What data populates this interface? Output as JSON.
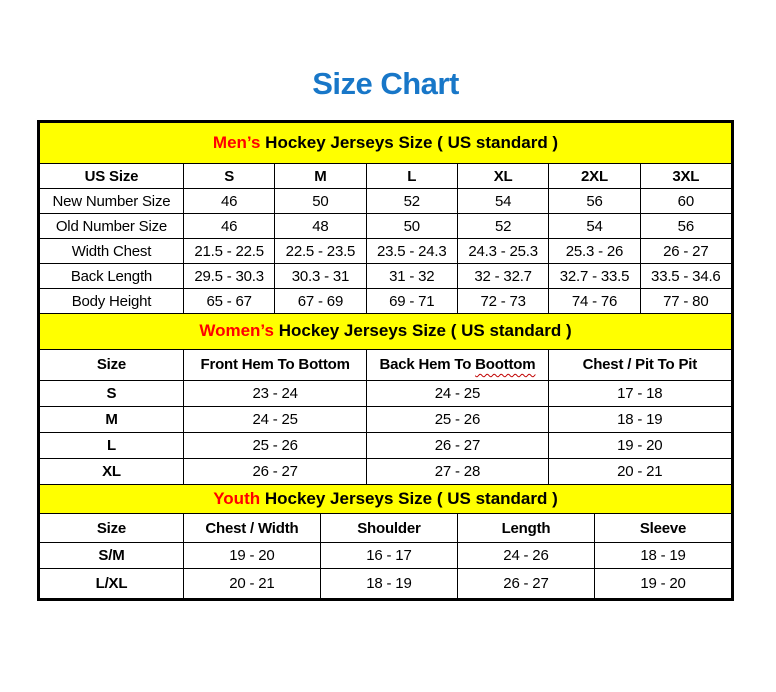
{
  "page": {
    "title": "Size Chart"
  },
  "colors": {
    "title_blue": "#1877c8",
    "band_yellow": "#ffff00",
    "accent_red": "#ff0000",
    "squiggle_red": "#c00000",
    "line_black": "#000000"
  },
  "sections": {
    "mens": {
      "band_highlight": "Men’s",
      "band_rest": " Hockey Jerseys Size ( US standard )",
      "columns": [
        "US Size",
        "S",
        "M",
        "L",
        "XL",
        "2XL",
        "3XL"
      ],
      "rows": [
        {
          "label": "New Number Size",
          "values": [
            "46",
            "50",
            "52",
            "54",
            "56",
            "60"
          ]
        },
        {
          "label": "Old Number Size",
          "values": [
            "46",
            "48",
            "50",
            "52",
            "54",
            "56"
          ]
        },
        {
          "label": "Width Chest",
          "values": [
            "21.5 - 22.5",
            "22.5 - 23.5",
            "23.5 - 24.3",
            "24.3 - 25.3",
            "25.3 - 26",
            "26 - 27"
          ]
        },
        {
          "label": "Back Length",
          "values": [
            "29.5 - 30.3",
            "30.3 - 31",
            "31 - 32",
            "32 - 32.7",
            "32.7 - 33.5",
            "33.5 - 34.6"
          ]
        },
        {
          "label": "Body Height",
          "values": [
            "65 - 67",
            "67 - 69",
            "69 - 71",
            "72 - 73",
            "74 - 76",
            "77 - 80"
          ]
        }
      ]
    },
    "womens": {
      "band_highlight": "Women’s",
      "band_rest": " Hockey Jerseys Size ( US standard )",
      "col_size": "Size",
      "col_front_hem": "Front Hem To Bottom",
      "col_back_hem_prefix": "Back Hem To ",
      "col_back_hem_misspelled": "Boottom",
      "col_chest": "Chest / Pit To Pit",
      "rows": [
        {
          "label": "S",
          "values": [
            "23 - 24",
            "24 - 25",
            "17 - 18"
          ]
        },
        {
          "label": "M",
          "values": [
            "24 - 25",
            "25 - 26",
            "18 - 19"
          ]
        },
        {
          "label": "L",
          "values": [
            "25 - 26",
            "26 - 27",
            "19 - 20"
          ]
        },
        {
          "label": "XL",
          "values": [
            "26 - 27",
            "27 - 28",
            "20 - 21"
          ]
        }
      ]
    },
    "youth": {
      "band_highlight": "Youth",
      "band_rest": " Hockey Jerseys Size ( US standard )",
      "columns": [
        "Size",
        "Chest / Width",
        "Shoulder",
        "Length",
        "Sleeve"
      ],
      "rows": [
        {
          "label": "S/M",
          "values": [
            "19 - 20",
            "16 - 17",
            "24 - 26",
            "18 - 19"
          ]
        },
        {
          "label": "L/XL",
          "values": [
            "20 - 21",
            "18 - 19",
            "26 - 27",
            "19 - 20"
          ]
        }
      ]
    }
  }
}
